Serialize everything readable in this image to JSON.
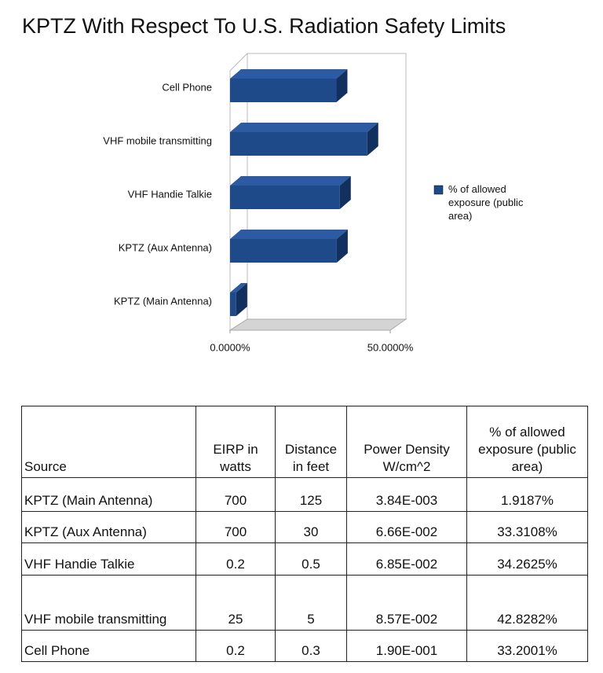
{
  "chart_data": {
    "type": "bar3d_horizontal",
    "title": "KPTZ With Respect To U.S. Radiation Safety Limits",
    "categories": [
      "KPTZ (Main Antenna)",
      "KPTZ (Aux Antenna)",
      "VHF Handie Talkie",
      "VHF mobile transmitting",
      "Cell Phone"
    ],
    "series": [
      {
        "name": "% of allowed exposure (public area)",
        "color": "#1f4a8a",
        "values": [
          1.9187,
          33.3108,
          34.2625,
          42.8282,
          33.2001
        ]
      }
    ],
    "xlim": [
      0,
      50
    ],
    "xticks": [
      {
        "value": 0,
        "label": "0.0000%"
      },
      {
        "value": 50,
        "label": "50.0000%"
      }
    ],
    "legend": "right"
  },
  "table": {
    "header": [
      "Source",
      "EIRP in watts",
      "Distance in feet",
      "Power Density W/cm^2",
      "% of allowed exposure (public area)"
    ],
    "rows": [
      [
        "KPTZ (Main Antenna)",
        "700",
        "125",
        "3.84E-003",
        "1.9187%"
      ],
      [
        "KPTZ (Aux Antenna)",
        "700",
        "30",
        "6.66E-002",
        "33.3108%"
      ],
      [
        "VHF Handie Talkie",
        "0.2",
        "0.5",
        "6.85E-002",
        "34.2625%"
      ],
      [
        "VHF mobile transmitting",
        "25",
        "5",
        "8.57E-002",
        "42.8282%"
      ],
      [
        "Cell Phone",
        "0.2",
        "0.3",
        "1.90E-001",
        "33.2001%"
      ]
    ]
  }
}
